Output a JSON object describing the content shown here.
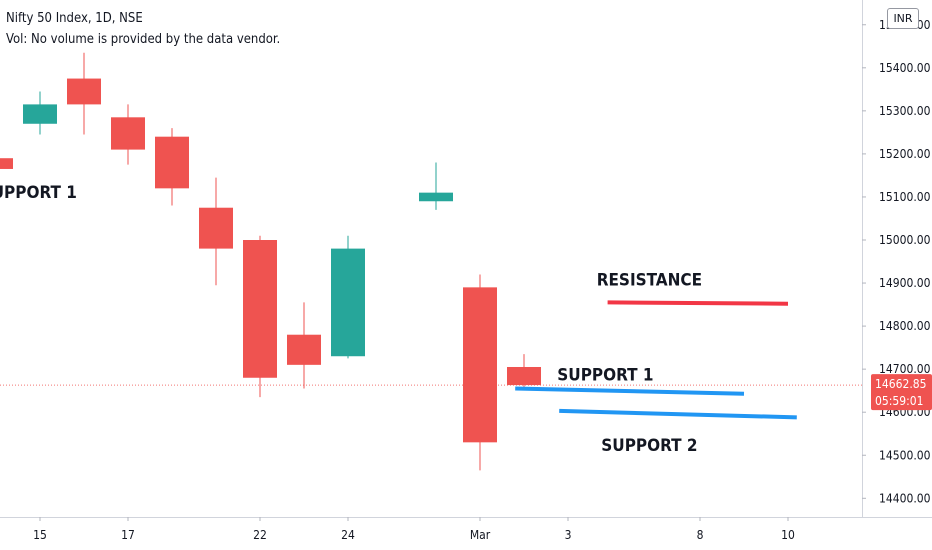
{
  "header": {
    "title": "Nifty 50 Index, 1D, NSE",
    "volume_note": "Vol: No volume is provided by the data vendor."
  },
  "currency": "INR",
  "price_label": "14662.85",
  "countdown_label": "05:59:01",
  "colors": {
    "up": "#26a69a",
    "down": "#ef5350",
    "resistance": "#f23645",
    "support": "#2196f3",
    "price_badge": "#ef5350"
  },
  "chart_data": {
    "type": "candlestick",
    "y_axis": {
      "ticks": [
        14400,
        14500,
        14600,
        14700,
        14800,
        14900,
        15000,
        15100,
        15200,
        15300,
        15400,
        15500
      ],
      "tick_labels": [
        "14400.00",
        "14500.00",
        "14600.00",
        "14700.00",
        "14800.00",
        "14900.00",
        "15000.00",
        "15100.00",
        "15200.00",
        "15300.00",
        "15400.00",
        "15500.00"
      ],
      "ylim": [
        14365,
        15565
      ]
    },
    "x_axis": {
      "tick_labels": [
        {
          "slot": 1,
          "label": "15"
        },
        {
          "slot": 3,
          "label": "17"
        },
        {
          "slot": 6,
          "label": "22"
        },
        {
          "slot": 8,
          "label": "24"
        },
        {
          "slot": 11,
          "label": "Mar"
        },
        {
          "slot": 13,
          "label": "3"
        },
        {
          "slot": 16,
          "label": "8"
        },
        {
          "slot": 18,
          "label": "10"
        }
      ]
    },
    "candles": [
      {
        "slot": 0,
        "open": 15190,
        "high": 15190,
        "low": 15165,
        "close": 15165
      },
      {
        "slot": 1,
        "open": 15270,
        "high": 15345,
        "low": 15245,
        "close": 15315
      },
      {
        "slot": 2,
        "open": 15375,
        "high": 15435,
        "low": 15245,
        "close": 15315
      },
      {
        "slot": 3,
        "open": 15285,
        "high": 15315,
        "low": 15175,
        "close": 15210
      },
      {
        "slot": 4,
        "open": 15240,
        "high": 15260,
        "low": 15080,
        "close": 15120
      },
      {
        "slot": 5,
        "open": 15075,
        "high": 15145,
        "low": 14895,
        "close": 14980
      },
      {
        "slot": 6,
        "open": 15000,
        "high": 15010,
        "low": 14635,
        "close": 14680
      },
      {
        "slot": 7,
        "open": 14780,
        "high": 14855,
        "low": 14655,
        "close": 14710
      },
      {
        "slot": 8,
        "open": 14730,
        "high": 15010,
        "low": 14725,
        "close": 14980
      },
      {
        "slot": 10,
        "open": 15090,
        "high": 15180,
        "low": 15070,
        "close": 15110
      },
      {
        "slot": 11,
        "open": 14890,
        "high": 14920,
        "low": 14465,
        "close": 14530
      },
      {
        "slot": 12,
        "open": 14705,
        "high": 14735,
        "low": 14655,
        "close": 14663
      }
    ],
    "current_price": 14662.85,
    "annotations": [
      {
        "type": "line",
        "name": "resistance-line",
        "color": "#f23645",
        "x1": 13.9,
        "y1": 14855,
        "x2": 18.0,
        "y2": 14852
      },
      {
        "type": "line",
        "name": "support1-line",
        "color": "#2196f3",
        "x1": 11.8,
        "y1": 14655,
        "x2": 17.0,
        "y2": 14643
      },
      {
        "type": "line",
        "name": "support2-line",
        "color": "#2196f3",
        "x1": 12.8,
        "y1": 14603,
        "x2": 18.2,
        "y2": 14588
      },
      {
        "type": "text",
        "name": "support1-left-label",
        "text": "SUPPORT 1",
        "x": -0.35,
        "y": 15097,
        "anchor": "start"
      },
      {
        "type": "text",
        "name": "resistance-label",
        "text": "RESISTANCE",
        "x": 14.85,
        "y": 14894,
        "anchor": "middle"
      },
      {
        "type": "text",
        "name": "support1-right-label",
        "text": "SUPPORT 1",
        "x": 13.85,
        "y": 14674,
        "anchor": "middle"
      },
      {
        "type": "text",
        "name": "support2-label",
        "text": "SUPPORT 2",
        "x": 14.85,
        "y": 14510,
        "anchor": "middle"
      }
    ]
  }
}
